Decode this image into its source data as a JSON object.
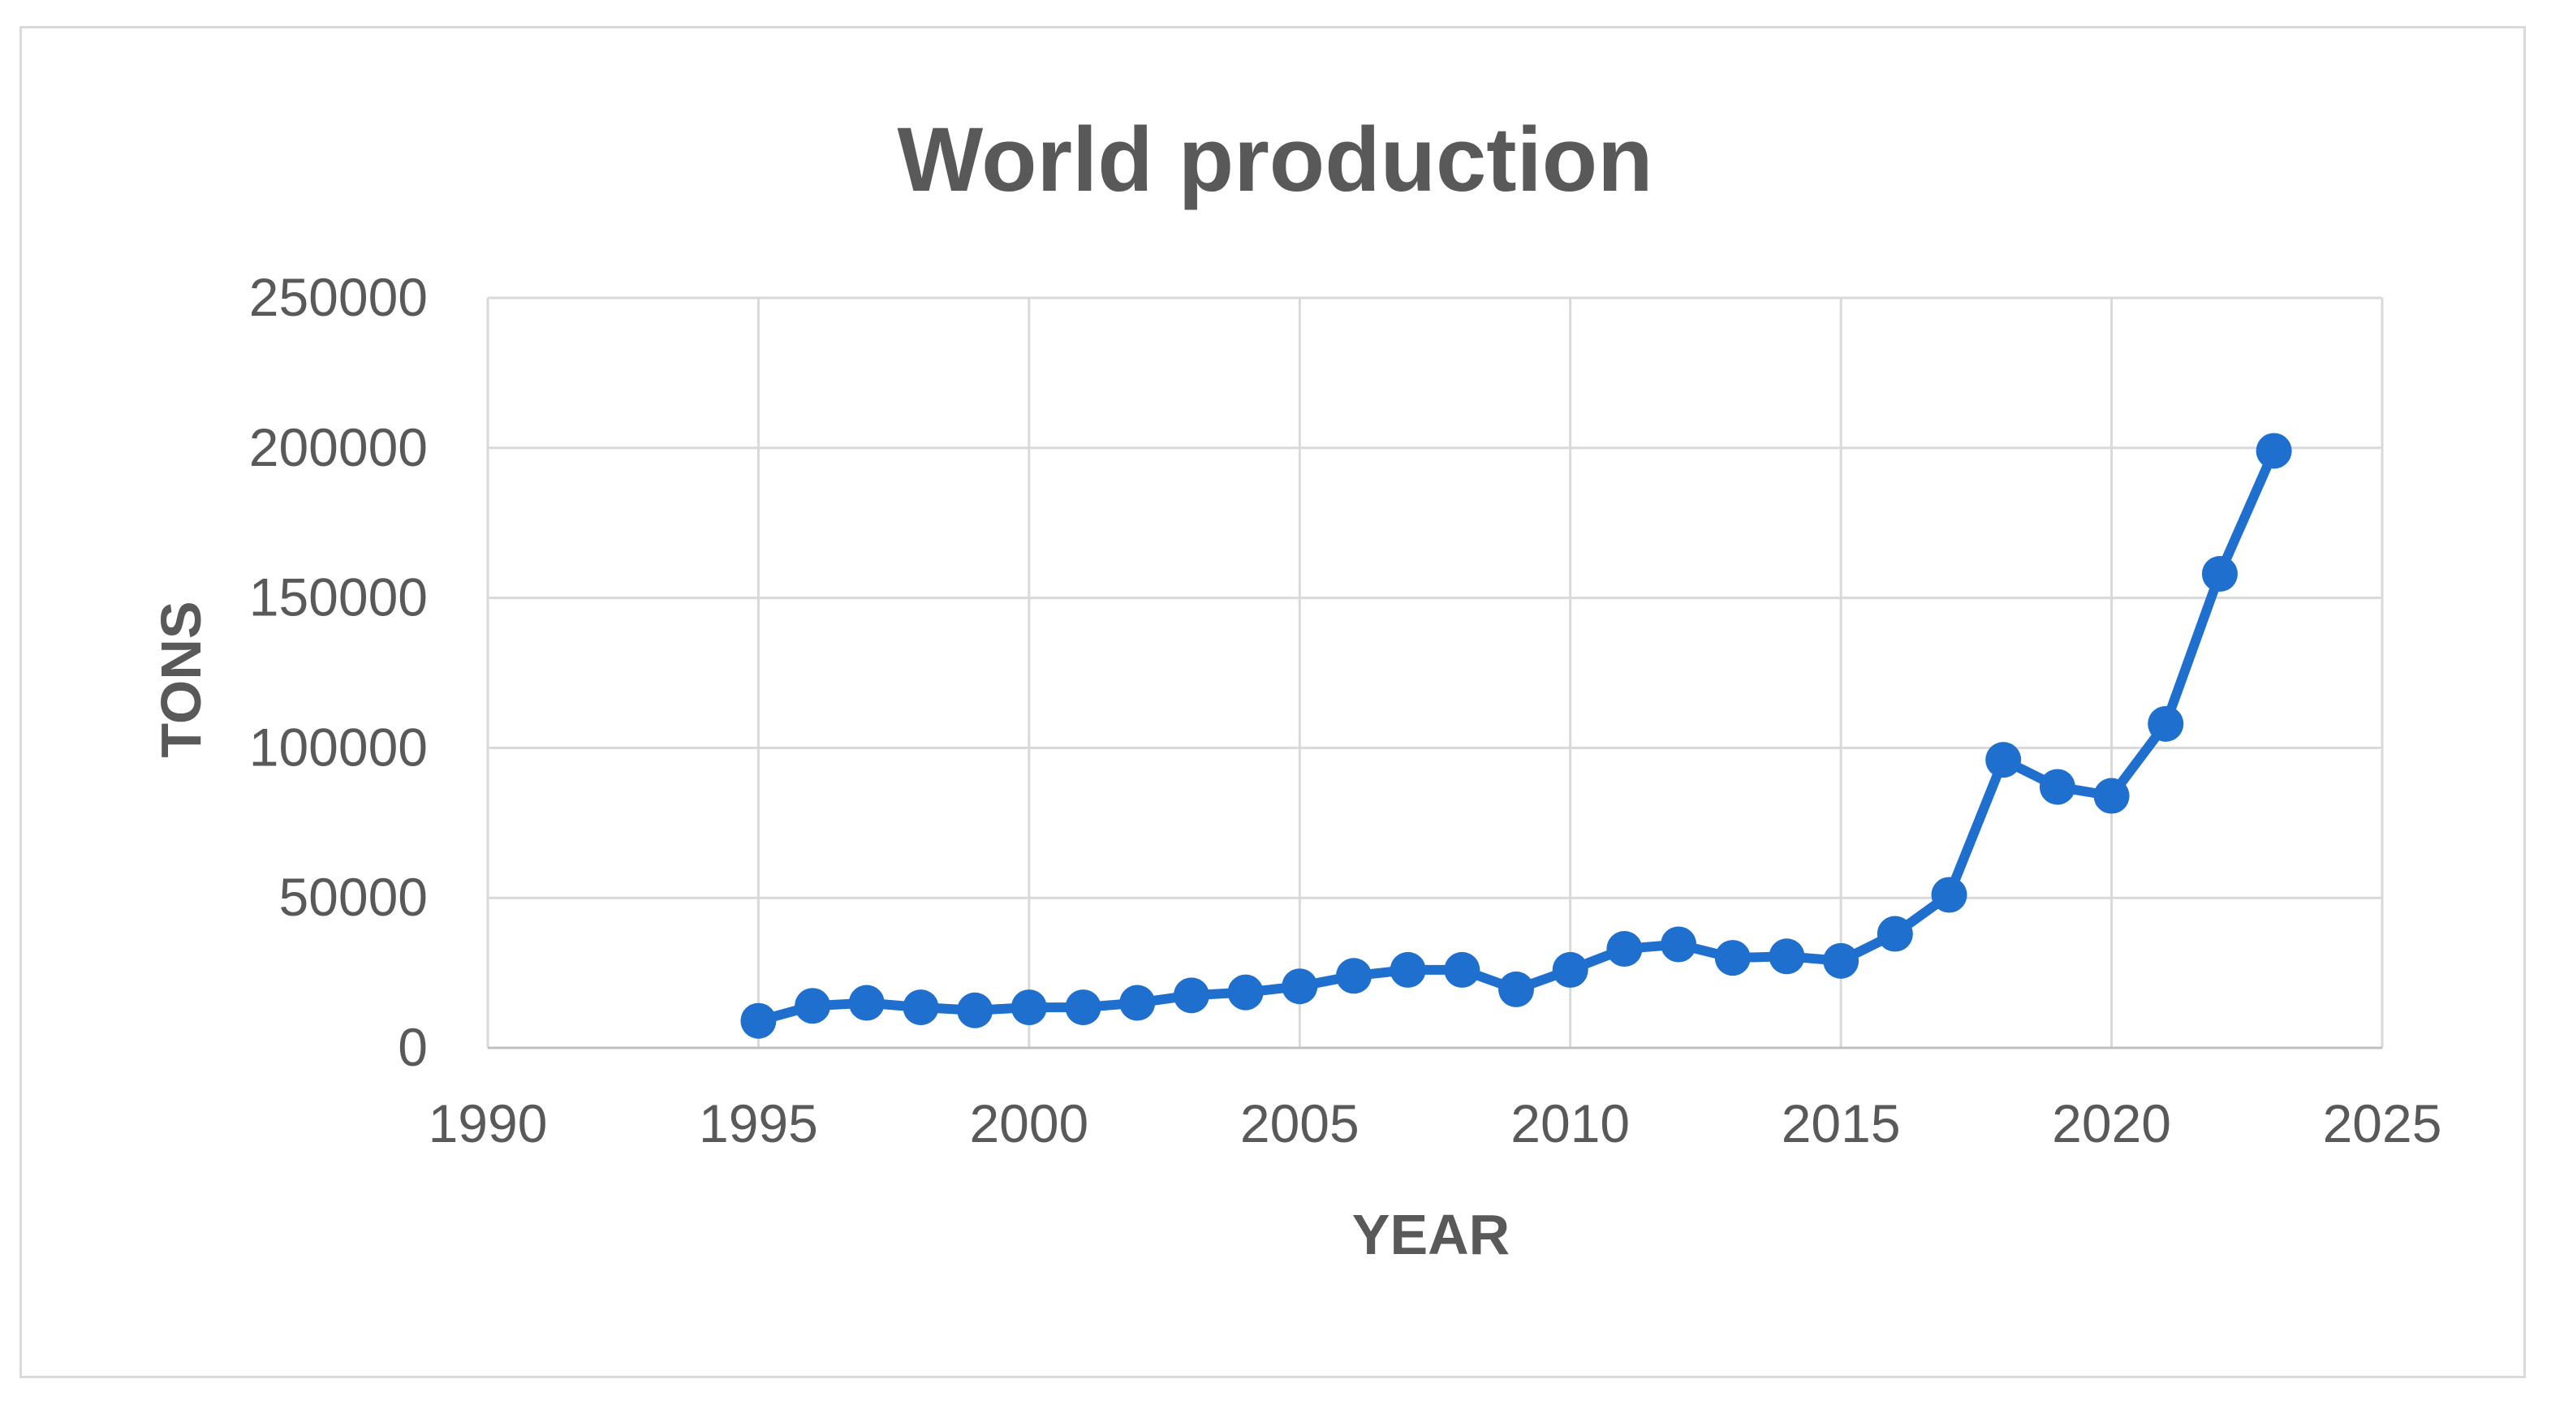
{
  "chart_data": {
    "type": "scatter",
    "title": "World production",
    "xlabel": "YEAR",
    "ylabel": "TONS",
    "xlim": [
      1990,
      2025
    ],
    "ylim": [
      0,
      250000
    ],
    "x_ticks": [
      "1990",
      "1995",
      "2000",
      "2005",
      "2010",
      "2015",
      "2020",
      "2025"
    ],
    "y_ticks": [
      "0",
      "50000",
      "100000",
      "150000",
      "200000",
      "250000"
    ],
    "grid": true,
    "legend": "none",
    "markers": true,
    "lines": true,
    "colors": {
      "series": "#1f6fcf",
      "grid": "#d9d9d9",
      "text": "#595959"
    },
    "series": [
      {
        "x": [
          1995,
          1996,
          1997,
          1998,
          1999,
          2000,
          2001,
          2002,
          2003,
          2004,
          2005,
          2006,
          2007,
          2008,
          2009,
          2010,
          2011,
          2012,
          2013,
          2014,
          2015,
          2016,
          2017,
          2018,
          2019,
          2020,
          2021,
          2022,
          2023
        ],
        "y": [
          9000,
          14000,
          15000,
          13500,
          12500,
          13500,
          13500,
          15000,
          17500,
          18500,
          20500,
          24000,
          26000,
          26000,
          19500,
          26000,
          33000,
          34500,
          30000,
          30500,
          29000,
          38000,
          51000,
          96000,
          87000,
          84000,
          108000,
          158000,
          199000
        ]
      }
    ]
  }
}
